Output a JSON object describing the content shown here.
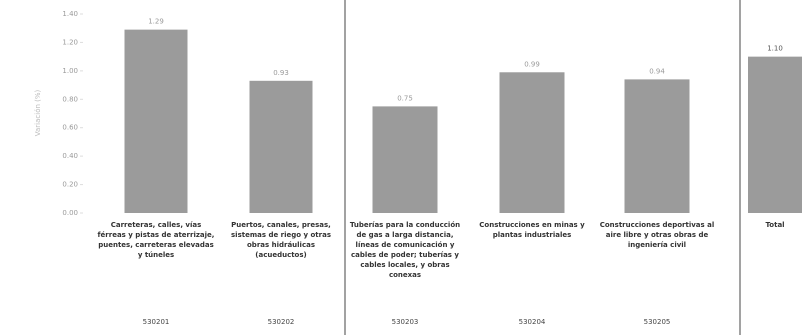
{
  "chart_data": {
    "type": "bar",
    "y_label": "Variación (%)",
    "categories": [
      "Carreteras, calles, vías férreas y pistas de aterrizaje, puentes, carreteras elevadas y túneles",
      "Puertos, canales, presas, sistemas de riego y otras obras hidráulicas (acueductos)",
      "Tuberías para la conducción de gas a larga distancia, líneas de comunicación y cables de poder; tuberías y cables locales, y obras conexas",
      "Construcciones en minas y plantas industriales",
      "Construcciones deportivas al aire libre y otras obras de ingeniería civil",
      "Total"
    ],
    "codes": [
      "530201",
      "530202",
      "530203",
      "530204",
      "530205"
    ],
    "values": [
      1.29,
      0.93,
      0.75,
      0.99,
      0.94,
      1.1
    ],
    "value_labels": [
      "1.29",
      "0.93",
      "0.75",
      "0.99",
      "0.94",
      "1.10"
    ],
    "color": "#9b9b9b",
    "ylim": [
      0,
      1.4
    ],
    "yticks": [
      {
        "value": 0,
        "label": "0.00"
      },
      {
        "value": 0.2,
        "label": "0.20"
      },
      {
        "value": 0.4,
        "label": "0.40"
      },
      {
        "value": 0.6,
        "label": "0.60"
      },
      {
        "value": 0.8,
        "label": "0.80"
      },
      {
        "value": 1,
        "label": "1.00"
      },
      {
        "value": 1.2,
        "label": "1.20"
      },
      {
        "value": 1.4,
        "label": "1.40"
      }
    ]
  }
}
